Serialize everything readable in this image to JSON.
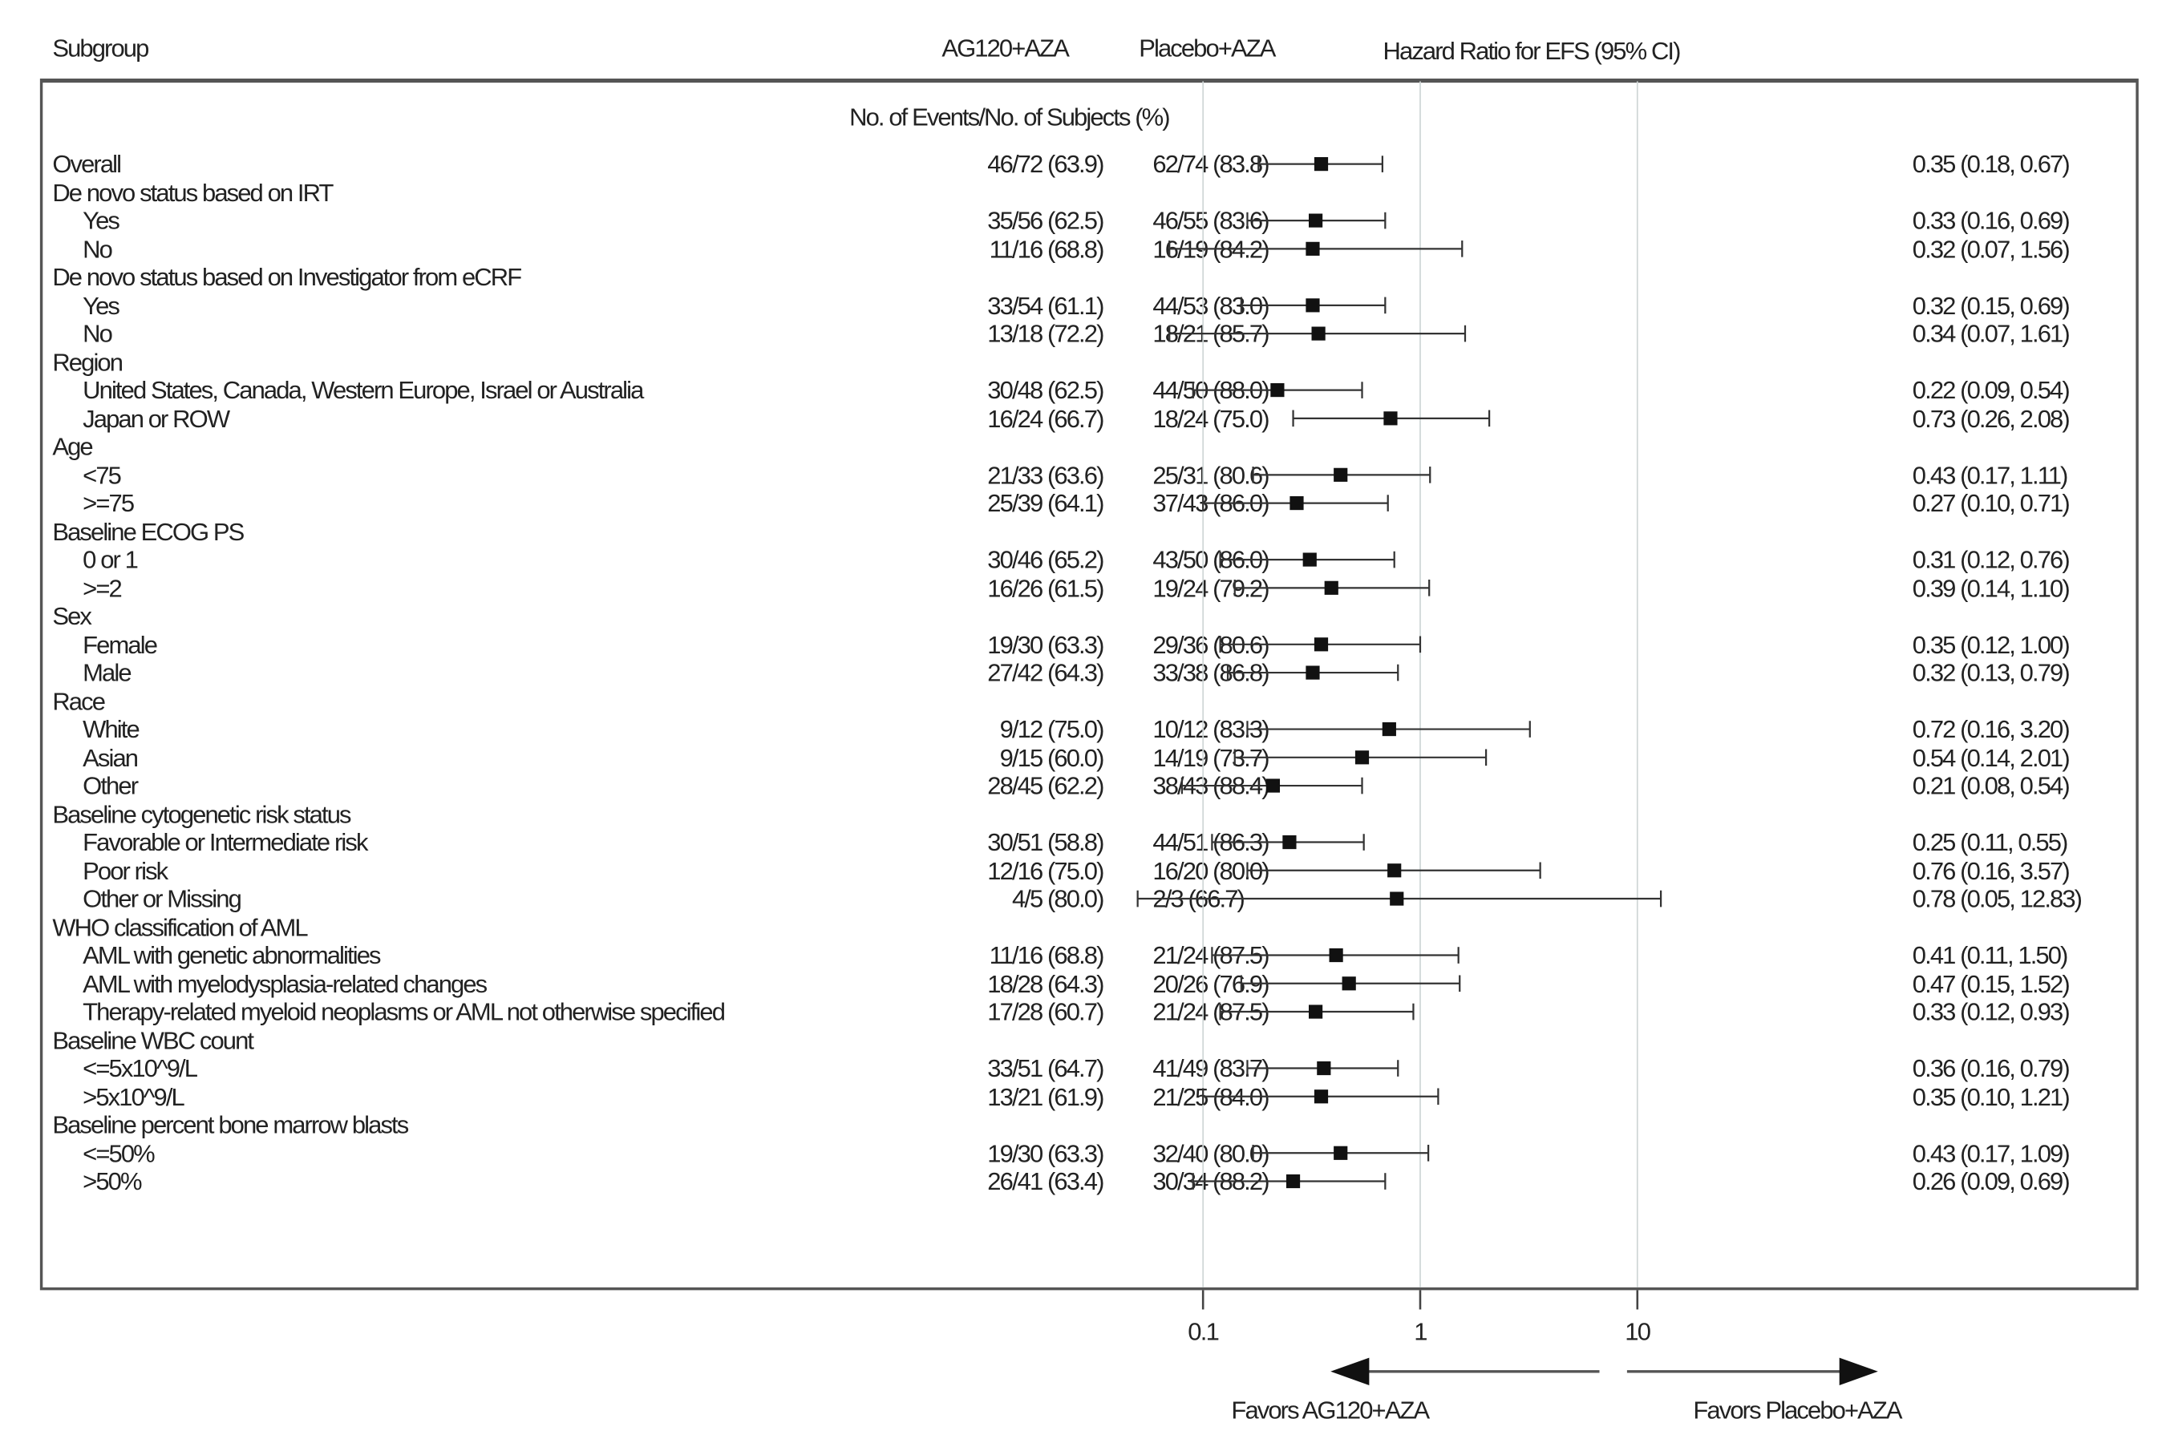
{
  "header": {
    "subgroup": "Subgroup",
    "arm1": "AG120+AZA",
    "arm2": "Placebo+AZA",
    "hr": "Hazard Ratio for EFS (95% CI)",
    "events": "No. of Events/No. of Subjects (%)"
  },
  "chart_data": {
    "type": "forest",
    "xscale": "log",
    "xlim": [
      0.1,
      10
    ],
    "xticks": [
      "0.1",
      "1",
      "10"
    ],
    "reference_line": 1,
    "grid": true,
    "favors_left": "Favors AG120+AZA",
    "favors_right": "Favors Placebo+AZA",
    "rows": [
      {
        "label": "Overall",
        "level": 0,
        "arm1": "46/72 (63.9)",
        "arm2": "62/74 (83.8)",
        "hr": 0.35,
        "lo": 0.18,
        "hi": 0.67,
        "text": "0.35 (0.18, 0.67)"
      },
      {
        "label": "De novo status based on IRT",
        "level": 0
      },
      {
        "label": "Yes",
        "level": 1,
        "arm1": "35/56 (62.5)",
        "arm2": "46/55 (83.6)",
        "hr": 0.33,
        "lo": 0.16,
        "hi": 0.69,
        "text": "0.33 (0.16, 0.69)"
      },
      {
        "label": "No",
        "level": 1,
        "arm1": "11/16 (68.8)",
        "arm2": "16/19 (84.2)",
        "hr": 0.32,
        "lo": 0.07,
        "hi": 1.56,
        "text": "0.32 (0.07, 1.56)"
      },
      {
        "label": "De novo status based on Investigator from eCRF",
        "level": 0
      },
      {
        "label": "Yes",
        "level": 1,
        "arm1": "33/54 (61.1)",
        "arm2": "44/53 (83.0)",
        "hr": 0.32,
        "lo": 0.15,
        "hi": 0.69,
        "text": "0.32 (0.15, 0.69)"
      },
      {
        "label": "No",
        "level": 1,
        "arm1": "13/18 (72.2)",
        "arm2": "18/21 (85.7)",
        "hr": 0.34,
        "lo": 0.07,
        "hi": 1.61,
        "text": "0.34 (0.07, 1.61)"
      },
      {
        "label": "Region",
        "level": 0
      },
      {
        "label": "United States, Canada, Western Europe, Israel or Australia",
        "level": 1,
        "arm1": "30/48 (62.5)",
        "arm2": "44/50 (88.0)",
        "hr": 0.22,
        "lo": 0.09,
        "hi": 0.54,
        "text": "0.22 (0.09, 0.54)"
      },
      {
        "label": "Japan or ROW",
        "level": 1,
        "arm1": "16/24 (66.7)",
        "arm2": "18/24 (75.0)",
        "hr": 0.73,
        "lo": 0.26,
        "hi": 2.08,
        "text": "0.73 (0.26, 2.08)"
      },
      {
        "label": "Age",
        "level": 0
      },
      {
        "label": "<75",
        "level": 1,
        "arm1": "21/33 (63.6)",
        "arm2": "25/31 (80.6)",
        "hr": 0.43,
        "lo": 0.17,
        "hi": 1.11,
        "text": "0.43 (0.17, 1.11)"
      },
      {
        "label": ">=75",
        "level": 1,
        "arm1": "25/39 (64.1)",
        "arm2": "37/43 (86.0)",
        "hr": 0.27,
        "lo": 0.1,
        "hi": 0.71,
        "text": "0.27 (0.10, 0.71)"
      },
      {
        "label": "Baseline ECOG PS",
        "level": 0
      },
      {
        "label": "0 or 1",
        "level": 1,
        "arm1": "30/46 (65.2)",
        "arm2": "43/50 (86.0)",
        "hr": 0.31,
        "lo": 0.12,
        "hi": 0.76,
        "text": "0.31 (0.12, 0.76)"
      },
      {
        "label": ">=2",
        "level": 1,
        "arm1": "16/26 (61.5)",
        "arm2": "19/24 (79.2)",
        "hr": 0.39,
        "lo": 0.14,
        "hi": 1.1,
        "text": "0.39 (0.14, 1.10)"
      },
      {
        "label": "Sex",
        "level": 0
      },
      {
        "label": "Female",
        "level": 1,
        "arm1": "19/30 (63.3)",
        "arm2": "29/36 (80.6)",
        "hr": 0.35,
        "lo": 0.12,
        "hi": 1.0,
        "text": "0.35 (0.12, 1.00)"
      },
      {
        "label": "Male",
        "level": 1,
        "arm1": "27/42 (64.3)",
        "arm2": "33/38 (86.8)",
        "hr": 0.32,
        "lo": 0.13,
        "hi": 0.79,
        "text": "0.32 (0.13, 0.79)"
      },
      {
        "label": "Race",
        "level": 0
      },
      {
        "label": "White",
        "level": 1,
        "arm1": "9/12 (75.0)",
        "arm2": "10/12 (83.3)",
        "hr": 0.72,
        "lo": 0.16,
        "hi": 3.2,
        "text": "0.72 (0.16, 3.20)"
      },
      {
        "label": "Asian",
        "level": 1,
        "arm1": "9/15 (60.0)",
        "arm2": "14/19 (73.7)",
        "hr": 0.54,
        "lo": 0.14,
        "hi": 2.01,
        "text": "0.54 (0.14, 2.01)"
      },
      {
        "label": "Other",
        "level": 1,
        "arm1": "28/45 (62.2)",
        "arm2": "38/43 (88.4)",
        "hr": 0.21,
        "lo": 0.08,
        "hi": 0.54,
        "text": "0.21 (0.08, 0.54)"
      },
      {
        "label": "Baseline cytogenetic risk status",
        "level": 0
      },
      {
        "label": "Favorable or Intermediate risk",
        "level": 1,
        "arm1": "30/51 (58.8)",
        "arm2": "44/51 (86.3)",
        "hr": 0.25,
        "lo": 0.11,
        "hi": 0.55,
        "text": "0.25 (0.11, 0.55)"
      },
      {
        "label": "Poor risk",
        "level": 1,
        "arm1": "12/16 (75.0)",
        "arm2": "16/20 (80.0)",
        "hr": 0.76,
        "lo": 0.16,
        "hi": 3.57,
        "text": "0.76 (0.16, 3.57)"
      },
      {
        "label": "Other or Missing",
        "level": 1,
        "arm1": "4/5 (80.0)",
        "arm2": "2/3 (66.7)",
        "hr": 0.78,
        "lo": 0.05,
        "hi": 12.83,
        "text": "0.78 (0.05, 12.83)"
      },
      {
        "label": "WHO classification of AML",
        "level": 0
      },
      {
        "label": "AML with genetic abnormalities",
        "level": 1,
        "arm1": "11/16 (68.8)",
        "arm2": "21/24 (87.5)",
        "hr": 0.41,
        "lo": 0.11,
        "hi": 1.5,
        "text": "0.41 (0.11, 1.50)"
      },
      {
        "label": "AML with myelodysplasia-related changes",
        "level": 1,
        "arm1": "18/28 (64.3)",
        "arm2": "20/26 (76.9)",
        "hr": 0.47,
        "lo": 0.15,
        "hi": 1.52,
        "text": "0.47 (0.15, 1.52)"
      },
      {
        "label": "Therapy-related myeloid neoplasms or AML not otherwise specified",
        "level": 1,
        "arm1": "17/28 (60.7)",
        "arm2": "21/24 (87.5)",
        "hr": 0.33,
        "lo": 0.12,
        "hi": 0.93,
        "text": "0.33 (0.12, 0.93)"
      },
      {
        "label": "Baseline WBC count",
        "level": 0
      },
      {
        "label": "<=5x10^9/L",
        "level": 1,
        "arm1": "33/51 (64.7)",
        "arm2": "41/49 (83.7)",
        "hr": 0.36,
        "lo": 0.16,
        "hi": 0.79,
        "text": "0.36 (0.16, 0.79)"
      },
      {
        "label": ">5x10^9/L",
        "level": 1,
        "arm1": "13/21 (61.9)",
        "arm2": "21/25 (84.0)",
        "hr": 0.35,
        "lo": 0.1,
        "hi": 1.21,
        "text": "0.35 (0.10, 1.21)"
      },
      {
        "label": "Baseline percent bone marrow blasts",
        "level": 0
      },
      {
        "label": "<=50%",
        "level": 1,
        "arm1": "19/30 (63.3)",
        "arm2": "32/40 (80.0)",
        "hr": 0.43,
        "lo": 0.17,
        "hi": 1.09,
        "text": "0.43 (0.17, 1.09)"
      },
      {
        "label": ">50%",
        "level": 1,
        "arm1": "26/41 (63.4)",
        "arm2": "30/34 (88.2)",
        "hr": 0.26,
        "lo": 0.09,
        "hi": 0.69,
        "text": "0.26 (0.09, 0.69)"
      }
    ]
  }
}
